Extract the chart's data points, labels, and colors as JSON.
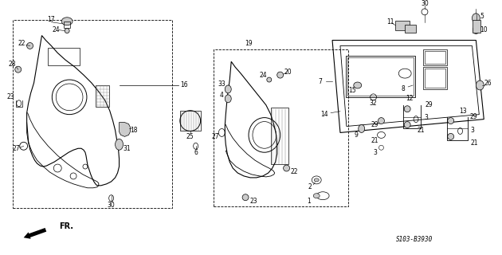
{
  "background_color": "#ffffff",
  "diagram_code": "S103-B3930",
  "fr_label": "FR.",
  "fig_width": 6.3,
  "fig_height": 3.2,
  "dpi": 100,
  "line_color": "#000000",
  "text_color": "#000000",
  "gray_fill": "#aaaaaa",
  "light_gray": "#cccccc",
  "font_size": 5.5
}
